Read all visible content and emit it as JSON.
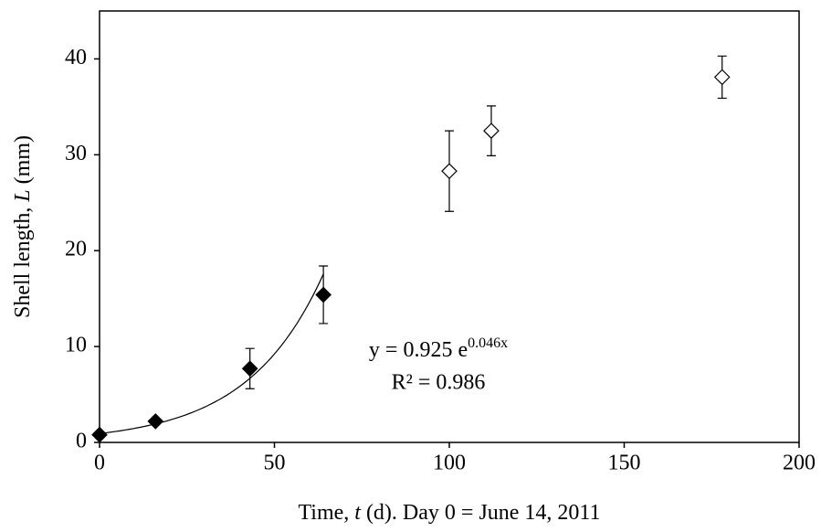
{
  "chart_data": {
    "type": "scatter",
    "xlabel": [
      "Time, ",
      "t",
      " (d). Day 0 = June 14, 2011"
    ],
    "ylabel": [
      "Shell length, ",
      "L",
      " (mm)"
    ],
    "xlim": [
      0,
      200
    ],
    "xticks": [
      0,
      50,
      100,
      150,
      200
    ],
    "ylim": [
      0,
      45
    ],
    "yticks": [
      0,
      10,
      20,
      30,
      40
    ],
    "series": [
      {
        "color": "#000000",
        "fill": "#000000",
        "x": [
          0,
          16,
          43,
          64
        ],
        "values": [
          0.8,
          2.2,
          7.7,
          15.4
        ],
        "errors": [
          null,
          null,
          2.1,
          3.0
        ]
      },
      {
        "color": "#000000",
        "fill": "#ffffff",
        "x": [
          100,
          112,
          178
        ],
        "values": [
          28.3,
          32.5,
          38.1
        ],
        "errors": [
          4.2,
          2.6,
          2.2
        ]
      }
    ],
    "trendline": {
      "series": 0,
      "a": 0.925,
      "b": 0.046,
      "color": "#000000"
    },
    "annotations": [
      "y = 0.925 e",
      "0.046x",
      "R² = 0.986"
    ]
  }
}
